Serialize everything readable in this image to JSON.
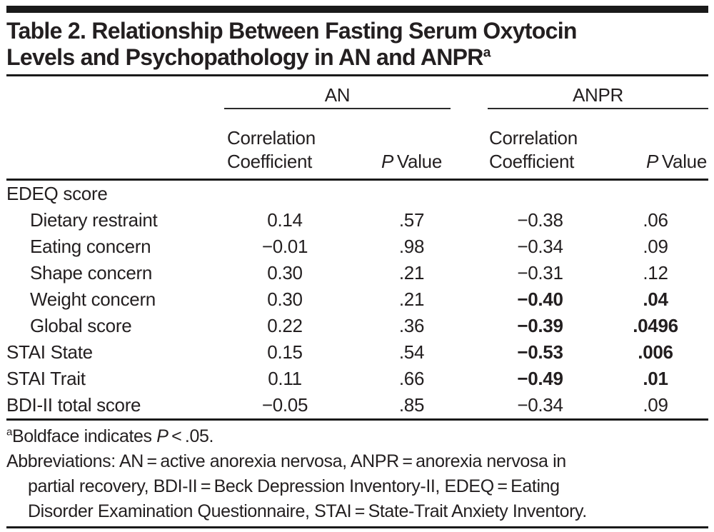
{
  "title": {
    "line1": "Table 2. Relationship Between Fasting Serum Oxytocin",
    "line2": "Levels and Psychopathology in AN and ANPR",
    "superscript": "a"
  },
  "header": {
    "group_an": "AN",
    "group_anpr": "ANPR",
    "corr_label": "Correlation Coefficient",
    "p_italic": "P",
    "p_rest": " Value"
  },
  "table": {
    "rows": [
      {
        "label": "EDEQ score",
        "an_r": "",
        "an_p": "",
        "anpr_r": "",
        "anpr_p": ""
      },
      {
        "label": "Dietary restraint",
        "an_r": "0.14",
        "an_p": ".57",
        "anpr_r": "−0.38",
        "anpr_p": ".06"
      },
      {
        "label": "Eating concern",
        "an_r": "−0.01",
        "an_p": ".98",
        "anpr_r": "−0.34",
        "anpr_p": ".09"
      },
      {
        "label": "Shape concern",
        "an_r": "0.30",
        "an_p": ".21",
        "anpr_r": "−0.31",
        "anpr_p": ".12"
      },
      {
        "label": "Weight concern",
        "an_r": "0.30",
        "an_p": ".21",
        "anpr_r": "−0.40",
        "anpr_p": ".04"
      },
      {
        "label": "Global score",
        "an_r": "0.22",
        "an_p": ".36",
        "anpr_r": "−0.39",
        "anpr_p": ".0496"
      },
      {
        "label": "STAI State",
        "an_r": "0.15",
        "an_p": ".54",
        "anpr_r": "−0.53",
        "anpr_p": ".006"
      },
      {
        "label": "STAI Trait",
        "an_r": "0.11",
        "an_p": ".66",
        "anpr_r": "−0.49",
        "anpr_p": ".01"
      },
      {
        "label": "BDI-II total score",
        "an_r": "−0.05",
        "an_p": ".85",
        "anpr_r": "−0.34",
        "anpr_p": ".09"
      }
    ]
  },
  "footnotes": {
    "fn1_sup": "a",
    "fn1_text": "Boldface indicates ",
    "fn1_italic": "P",
    "fn1_rest": " < .05.",
    "line2": "Abbreviations: AN = active anorexia nervosa, ANPR = anorexia nervosa in",
    "line3": "partial recovery, BDI-II = Beck Depression Inventory-II, EDEQ = Eating",
    "line4": "Disorder Examination Questionnaire, STAI = State-Trait Anxiety Inventory."
  },
  "colors": {
    "text": "#231f20",
    "rule": "#1a1a1a",
    "background": "#ffffff"
  }
}
